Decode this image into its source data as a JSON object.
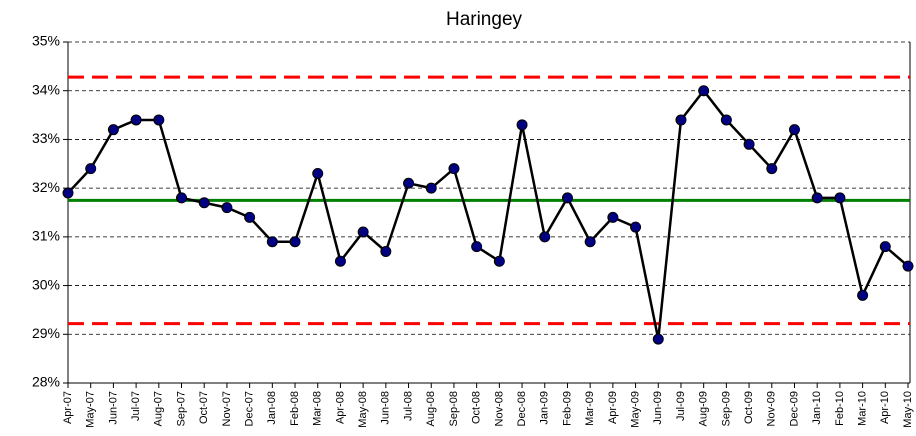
{
  "chart_data": {
    "type": "line",
    "title": "Haringey",
    "categories": [
      "Apr-07",
      "May-07",
      "Jun-07",
      "Jul-07",
      "Aug-07",
      "Sep-07",
      "Oct-07",
      "Nov-07",
      "Dec-07",
      "Jan-08",
      "Feb-08",
      "Mar-08",
      "Apr-08",
      "May-08",
      "Jun-08",
      "Jul-08",
      "Aug-08",
      "Sep-08",
      "Oct-08",
      "Nov-08",
      "Dec-08",
      "Jan-09",
      "Feb-09",
      "Mar-09",
      "Apr-09",
      "May-09",
      "Jun-09",
      "Jul-09",
      "Aug-09",
      "Sep-09",
      "Oct-09",
      "Nov-09",
      "Dec-09",
      "Jan-10",
      "Feb-10",
      "Mar-10",
      "Apr-10",
      "May-10"
    ],
    "series": [
      {
        "color": "#000000",
        "marker_color": "#000080",
        "values": [
          31.9,
          32.4,
          33.2,
          33.4,
          33.4,
          31.8,
          31.7,
          31.6,
          31.4,
          30.9,
          30.9,
          32.3,
          30.5,
          31.1,
          30.7,
          32.1,
          32.0,
          32.4,
          30.8,
          30.5,
          33.3,
          31.0,
          31.8,
          30.9,
          31.4,
          31.2,
          28.9,
          33.4,
          34.0,
          33.4,
          32.9,
          32.4,
          33.2,
          31.8,
          31.8,
          29.8,
          30.8,
          30.4
        ]
      }
    ],
    "reference_lines": [
      {
        "value": 34.28,
        "color": "#ff0000",
        "style": "dashed"
      },
      {
        "value": 31.75,
        "color": "#008000",
        "style": "solid"
      },
      {
        "value": 29.22,
        "color": "#ff0000",
        "style": "dashed"
      }
    ],
    "ylim": [
      28,
      35
    ],
    "yticks": [
      {
        "value": 28,
        "label": "28%"
      },
      {
        "value": 29,
        "label": "29%"
      },
      {
        "value": 30,
        "label": "30%"
      },
      {
        "value": 31,
        "label": "31%"
      },
      {
        "value": 32,
        "label": "32%"
      },
      {
        "value": 33,
        "label": "33%"
      },
      {
        "value": 34,
        "label": "34%"
      },
      {
        "value": 35,
        "label": "35%"
      }
    ],
    "grid": true
  }
}
